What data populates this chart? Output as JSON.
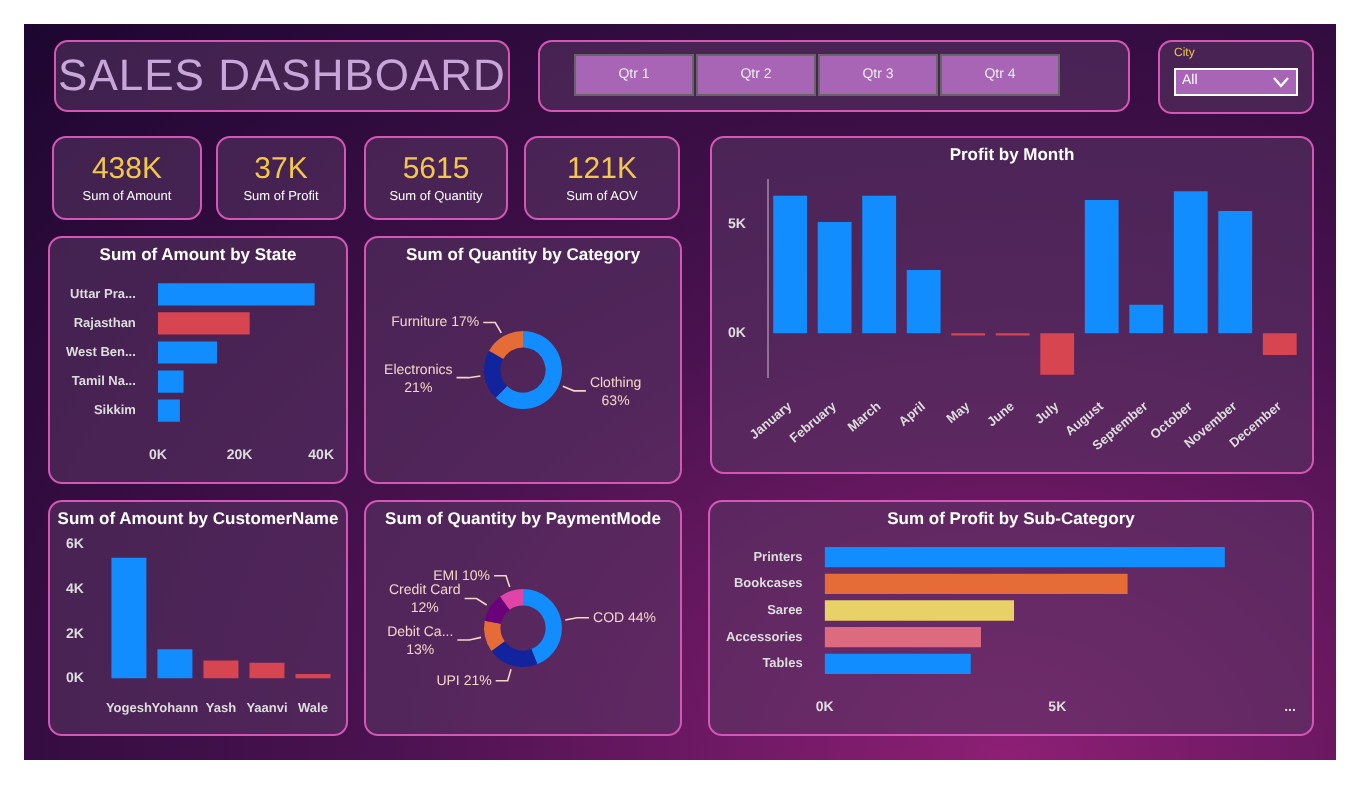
{
  "chart_data": [
    {
      "type": "other",
      "title": "SALES DASHBOARD"
    },
    {
      "type": "other",
      "annotations": [
        "Qtr 1",
        "Qtr 2",
        "Qtr 3",
        "Qtr 4"
      ]
    },
    {
      "type": "other",
      "title": "City",
      "annotations": [
        "All"
      ]
    },
    {
      "type": "other",
      "annotations": [
        "438K",
        "Sum of Amount"
      ]
    },
    {
      "type": "other",
      "annotations": [
        "37K",
        "Sum of Profit"
      ]
    },
    {
      "type": "other",
      "annotations": [
        "5615",
        "Sum of Quantity"
      ]
    },
    {
      "type": "other",
      "annotations": [
        "121K",
        "Sum of AOV"
      ]
    },
    {
      "type": "bar",
      "title": "Profit by Month",
      "categories": [
        "January",
        "February",
        "March",
        "April",
        "May",
        "June",
        "July",
        "August",
        "September",
        "October",
        "November",
        "December"
      ],
      "values": [
        6300,
        5100,
        6300,
        2900,
        -100,
        -100,
        -1900,
        6100,
        1300,
        6500,
        5600,
        -1000
      ],
      "colors": [
        "#118dff",
        "#118dff",
        "#118dff",
        "#118dff",
        "#d64550",
        "#d64550",
        "#d64550",
        "#118dff",
        "#118dff",
        "#118dff",
        "#118dff",
        "#d64550"
      ],
      "ylim": [
        -2000,
        7000
      ],
      "yticks": [
        {
          "value": 0,
          "label": "0K"
        },
        {
          "value": 5000,
          "label": "5K"
        }
      ]
    },
    {
      "type": "bar",
      "title": "Sum of Amount by State",
      "orientation": "horizontal",
      "categories": [
        "Uttar Pra...",
        "Rajasthan",
        "West Ben...",
        "Tamil Na...",
        "Sikkim"
      ],
      "values": [
        38400,
        22500,
        14500,
        6300,
        5400
      ],
      "colors": [
        "#118dff",
        "#d64550",
        "#118dff",
        "#118dff",
        "#118dff"
      ],
      "xlim": [
        0,
        40000
      ],
      "xticks": [
        {
          "value": 0,
          "label": "0K"
        },
        {
          "value": 20000,
          "label": "20K"
        },
        {
          "value": 40000,
          "label": "40K"
        }
      ]
    },
    {
      "type": "donut",
      "title": "Sum of Quantity by Category",
      "categories": [
        "Clothing",
        "Electronics",
        "Furniture"
      ],
      "values": [
        63,
        21,
        17
      ],
      "value_labels": [
        "63%",
        "21%",
        "17%"
      ],
      "colors": [
        "#118dff",
        "#12239e",
        "#e66c37"
      ]
    },
    {
      "type": "bar",
      "title": "Sum of Amount by CustomerName",
      "categories": [
        "Yogesh",
        "Yohann",
        "Yash",
        "Yaanvi",
        "Wale"
      ],
      "values": [
        5400,
        1300,
        800,
        700,
        200
      ],
      "colors": [
        "#118dff",
        "#118dff",
        "#d64550",
        "#d64550",
        "#d64550"
      ],
      "ylim": [
        0,
        6000
      ],
      "yticks": [
        {
          "value": 0,
          "label": "0K"
        },
        {
          "value": 2000,
          "label": "2K"
        },
        {
          "value": 4000,
          "label": "4K"
        },
        {
          "value": 6000,
          "label": "6K"
        }
      ]
    },
    {
      "type": "donut",
      "title": "Sum of Quantity by PaymentMode",
      "categories": [
        "COD",
        "UPI",
        "Debit Ca...",
        "Credit Card",
        "EMI"
      ],
      "values": [
        44,
        21,
        13,
        12,
        10
      ],
      "value_labels": [
        "44%",
        "21%",
        "13%",
        "12%",
        "10%"
      ],
      "colors": [
        "#118dff",
        "#12239e",
        "#e66c37",
        "#6b007b",
        "#e044a7"
      ]
    },
    {
      "type": "bar",
      "title": "Sum of Profit by Sub-Category",
      "orientation": "horizontal",
      "categories": [
        "Printers",
        "Bookcases",
        "Saree",
        "Accessories",
        "Tables"
      ],
      "values": [
        8600,
        6510,
        4070,
        3360,
        3140
      ],
      "colors": [
        "#118dff",
        "#e66c37",
        "#e8d166",
        "#dd6b7f",
        "#118dff"
      ],
      "xlim": [
        0,
        10000
      ],
      "xticks": [
        {
          "value": 0,
          "label": "0K"
        },
        {
          "value": 5000,
          "label": "5K"
        },
        {
          "value": 10000,
          "label": "..."
        }
      ]
    }
  ]
}
